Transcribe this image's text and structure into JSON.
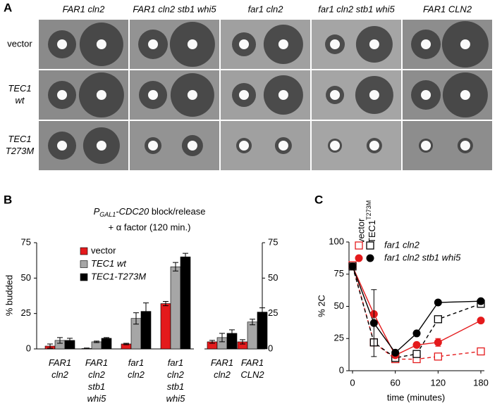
{
  "panel_a": {
    "label": "A",
    "columns": [
      "FAR1 cln2",
      "FAR1 cln2 stb1 whi5",
      "far1 cln2",
      "far1 cln2 stb1 whi5",
      "FAR1 CLN2"
    ],
    "rows": [
      "vector",
      "TEC1 wt",
      "TEC1 T273M"
    ]
  },
  "chart_data": [
    {
      "type": "bar",
      "label": "B",
      "title": {
        "prefix": "P",
        "subscript": "GAL1",
        "gene": "-CDC20",
        "suffix": " block/release"
      },
      "subtitle": "+ α factor (120 min.)",
      "y_label": "% budded",
      "categories": [
        "FAR1 cln2",
        "FAR1 cln2 stb1 whi5",
        "far1 cln2",
        "far1 cln2 stb1 whi5",
        "FAR1 cln2",
        "FAR1 CLN2"
      ],
      "series": [
        {
          "name": "vector",
          "color": "#e41a1c",
          "values": [
            2,
            0.3,
            3.5,
            32,
            5,
            5
          ],
          "errors": [
            1.5,
            0.3,
            0.5,
            1.5,
            1,
            1.5
          ]
        },
        {
          "name": "TEC1 wt",
          "color": "#a6a6a6",
          "values": [
            6,
            5,
            21.5,
            58,
            8,
            19
          ],
          "errors": [
            2,
            0.5,
            4,
            3,
            3,
            2
          ]
        },
        {
          "name": "TEC1-T273M",
          "color": "#000000",
          "values": [
            6,
            7.5,
            26.5,
            65,
            11,
            26
          ],
          "errors": [
            1.5,
            0.5,
            6,
            2.5,
            2.5,
            3
          ]
        }
      ],
      "ylim": [
        0,
        75
      ],
      "yticks": [
        0,
        25,
        50,
        75
      ],
      "y2lim": [
        0,
        75
      ],
      "y2ticks": [
        0,
        25,
        50,
        75
      ]
    },
    {
      "type": "line",
      "label": "C",
      "y_label": "% 2C",
      "x_label": "time (minutes)",
      "legend": {
        "columns": [
          "vector",
          {
            "main": "TEC1",
            "sup": "T273M"
          }
        ],
        "rows": [
          "far1 cln2",
          "far1 cln2 stb1 whi5"
        ]
      },
      "x": [
        0,
        30,
        60,
        90,
        120,
        180
      ],
      "series": [
        {
          "color": "#e41a1c",
          "marker": "open-square",
          "dash": true,
          "values": [
            82,
            22,
            9,
            9,
            11,
            15
          ]
        },
        {
          "color": "#000000",
          "marker": "open-square",
          "dash": true,
          "values": [
            81,
            22,
            10,
            13,
            40,
            52
          ]
        },
        {
          "color": "#e41a1c",
          "marker": "circle",
          "dash": false,
          "values": [
            81,
            44,
            12,
            20,
            22,
            39
          ],
          "errors": [
            null,
            null,
            null,
            null,
            3,
            null
          ]
        },
        {
          "color": "#000000",
          "marker": "circle",
          "dash": false,
          "values": [
            81,
            37,
            14,
            29,
            53,
            54
          ],
          "errors": [
            null,
            26,
            null,
            null,
            null,
            null
          ]
        }
      ],
      "xlim": [
        0,
        180
      ],
      "xticks": [
        0,
        60,
        120,
        180
      ],
      "ylim": [
        0,
        100
      ],
      "yticks": [
        0,
        25,
        50,
        75,
        100
      ]
    }
  ]
}
